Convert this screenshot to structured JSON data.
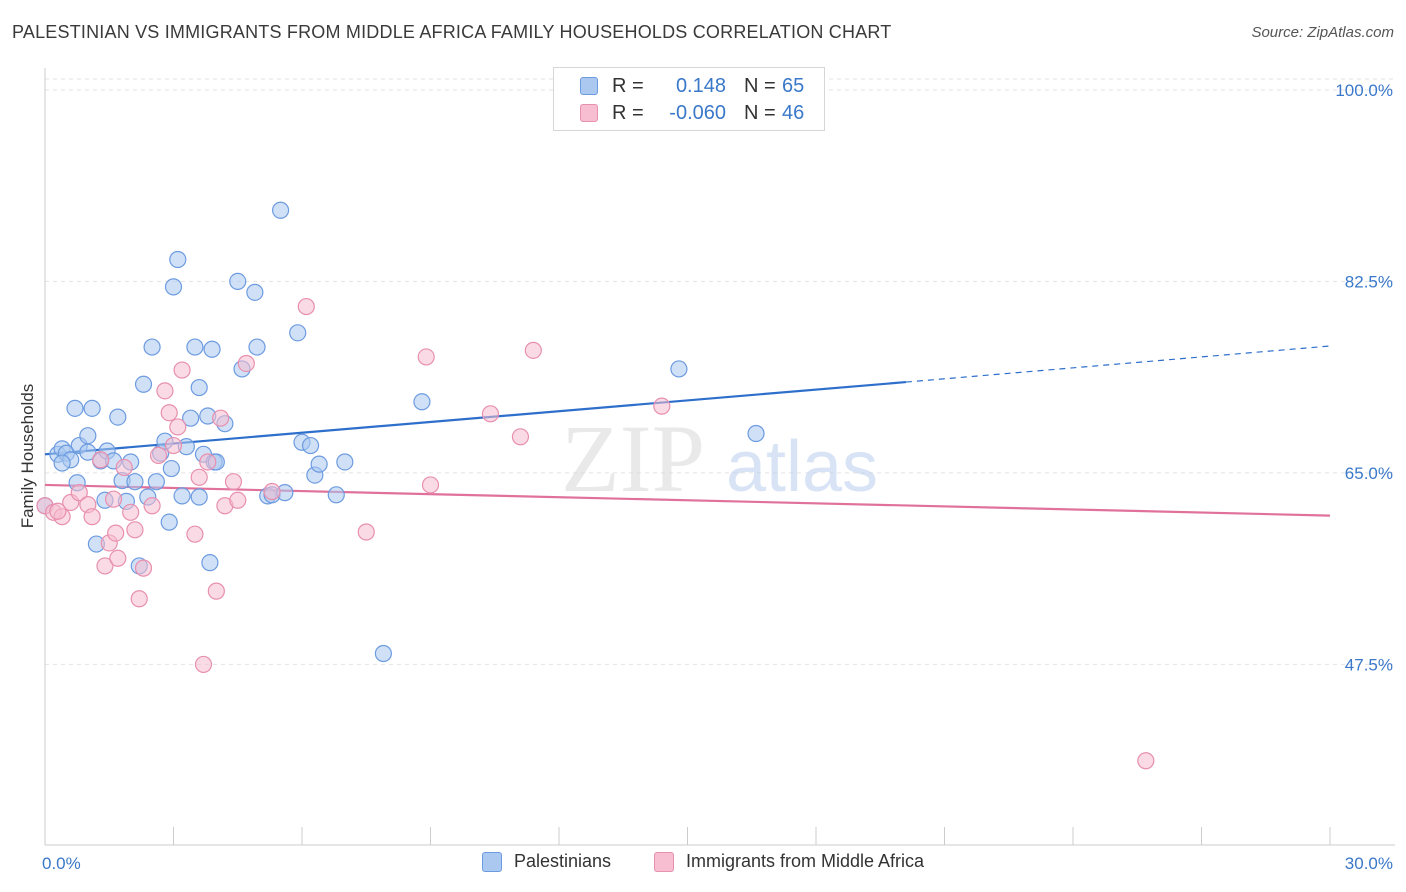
{
  "title": "PALESTINIAN VS IMMIGRANTS FROM MIDDLE AFRICA FAMILY HOUSEHOLDS CORRELATION CHART",
  "source": "Source: ZipAtlas.com",
  "watermark": {
    "zip": "ZIP",
    "atlas": "atlas"
  },
  "legend_top": {
    "rows": [
      {
        "r_label": "R =",
        "r_value": "0.148",
        "n_label": "N =",
        "n_value": "65"
      },
      {
        "r_label": "R =",
        "r_value": "-0.060",
        "n_label": "N =",
        "n_value": "46"
      }
    ]
  },
  "legend_bottom": {
    "items": [
      {
        "label": "Palestinians"
      },
      {
        "label": "Immigrants from Middle Africa"
      }
    ]
  },
  "colors": {
    "blue_fill": "#aac8f0",
    "blue_stroke": "#6d9be0",
    "blue_line": "#2e6fcb",
    "pink_fill": "#f6bed0",
    "pink_stroke": "#e88fae",
    "pink_line": "#e0719b",
    "axis_text": "#3a78c9",
    "grid": "#e3e3e3"
  },
  "chart_data": {
    "type": "scatter",
    "title": "PALESTINIAN VS IMMIGRANTS FROM MIDDLE AFRICA FAMILY HOUSEHOLDS CORRELATION CHART",
    "xlabel": "",
    "ylabel": "Family Households",
    "xlim": [
      0,
      30
    ],
    "ylim": [
      31,
      102
    ],
    "x_tick_labels": [
      {
        "value": 0,
        "label": "0.0%"
      },
      {
        "value": 30,
        "label": "30.0%"
      }
    ],
    "x_minor_ticks": [
      0,
      3,
      6,
      9,
      12,
      15,
      18,
      21,
      24,
      27,
      30
    ],
    "y_ticks": [
      {
        "value": 100,
        "label": "100.0%"
      },
      {
        "value": 82.5,
        "label": "82.5%"
      },
      {
        "value": 65,
        "label": "65.0%"
      },
      {
        "value": 47.5,
        "label": "47.5%"
      }
    ],
    "grid": true,
    "series": [
      {
        "name": "Palestinians",
        "color_key": "blue",
        "trend": {
          "x0": 0,
          "y0": 66.7,
          "x1": 20.1,
          "y1": 73.3,
          "dash_to_x": 30,
          "dash_to_y": 76.6
        },
        "points": [
          [
            0.0,
            62.0
          ],
          [
            0.3,
            66.7
          ],
          [
            0.4,
            67.2
          ],
          [
            0.5,
            66.8
          ],
          [
            0.6,
            66.2
          ],
          [
            0.7,
            70.9
          ],
          [
            0.75,
            64.1
          ],
          [
            0.8,
            67.5
          ],
          [
            1.0,
            68.4
          ],
          [
            1.1,
            70.9
          ],
          [
            1.2,
            58.5
          ],
          [
            1.3,
            66.1
          ],
          [
            1.4,
            62.5
          ],
          [
            1.45,
            67.0
          ],
          [
            1.6,
            66.1
          ],
          [
            1.7,
            70.1
          ],
          [
            1.8,
            64.3
          ],
          [
            1.9,
            62.4
          ],
          [
            2.0,
            66.0
          ],
          [
            2.1,
            64.2
          ],
          [
            2.2,
            56.5
          ],
          [
            2.3,
            73.1
          ],
          [
            2.4,
            62.8
          ],
          [
            2.5,
            76.5
          ],
          [
            2.6,
            64.2
          ],
          [
            2.7,
            66.8
          ],
          [
            2.8,
            67.9
          ],
          [
            2.9,
            60.5
          ],
          [
            2.95,
            65.4
          ],
          [
            3.0,
            82.0
          ],
          [
            3.1,
            84.5
          ],
          [
            3.2,
            62.9
          ],
          [
            3.3,
            67.4
          ],
          [
            3.4,
            70.0
          ],
          [
            3.5,
            76.5
          ],
          [
            3.6,
            72.8
          ],
          [
            3.6,
            62.8
          ],
          [
            3.7,
            66.7
          ],
          [
            3.8,
            70.2
          ],
          [
            3.85,
            56.8
          ],
          [
            3.9,
            76.3
          ],
          [
            3.95,
            66.0
          ],
          [
            4.0,
            66.0
          ],
          [
            4.2,
            69.5
          ],
          [
            4.5,
            82.5
          ],
          [
            4.6,
            74.5
          ],
          [
            4.9,
            81.5
          ],
          [
            4.95,
            76.5
          ],
          [
            5.2,
            62.9
          ],
          [
            5.3,
            63.0
          ],
          [
            5.5,
            89.0
          ],
          [
            5.6,
            63.2
          ],
          [
            5.9,
            77.8
          ],
          [
            6.0,
            67.8
          ],
          [
            6.2,
            67.5
          ],
          [
            6.3,
            64.8
          ],
          [
            6.4,
            65.8
          ],
          [
            6.8,
            63.0
          ],
          [
            7.0,
            66.0
          ],
          [
            7.9,
            48.5
          ],
          [
            8.8,
            71.5
          ],
          [
            14.8,
            74.5
          ],
          [
            16.6,
            68.6
          ],
          [
            0.4,
            65.9
          ],
          [
            1.0,
            66.9
          ]
        ]
      },
      {
        "name": "Immigrants from Middle Africa",
        "color_key": "pink",
        "trend": {
          "x0": 0,
          "y0": 63.9,
          "x1": 30,
          "y1": 61.1
        },
        "points": [
          [
            0.0,
            62.0
          ],
          [
            0.2,
            61.4
          ],
          [
            0.4,
            61.0
          ],
          [
            0.6,
            62.3
          ],
          [
            0.8,
            63.2
          ],
          [
            1.0,
            62.1
          ],
          [
            1.1,
            61.0
          ],
          [
            1.3,
            66.2
          ],
          [
            1.4,
            56.5
          ],
          [
            1.5,
            58.6
          ],
          [
            1.6,
            62.6
          ],
          [
            1.65,
            59.5
          ],
          [
            1.7,
            57.2
          ],
          [
            1.85,
            65.5
          ],
          [
            2.0,
            61.4
          ],
          [
            2.1,
            59.8
          ],
          [
            2.2,
            53.5
          ],
          [
            2.3,
            56.3
          ],
          [
            2.5,
            62.0
          ],
          [
            2.65,
            66.6
          ],
          [
            2.8,
            72.5
          ],
          [
            2.9,
            70.5
          ],
          [
            3.0,
            67.5
          ],
          [
            3.1,
            69.2
          ],
          [
            3.2,
            74.4
          ],
          [
            3.5,
            59.4
          ],
          [
            3.6,
            64.6
          ],
          [
            3.7,
            47.5
          ],
          [
            3.8,
            66.0
          ],
          [
            4.0,
            54.2
          ],
          [
            4.1,
            70.0
          ],
          [
            4.2,
            62.0
          ],
          [
            4.4,
            64.2
          ],
          [
            4.5,
            62.5
          ],
          [
            4.7,
            75.0
          ],
          [
            5.3,
            63.3
          ],
          [
            6.1,
            80.2
          ],
          [
            7.5,
            59.6
          ],
          [
            8.9,
            75.6
          ],
          [
            9.0,
            63.9
          ],
          [
            10.4,
            70.4
          ],
          [
            11.1,
            68.3
          ],
          [
            11.4,
            76.2
          ],
          [
            14.4,
            71.1
          ],
          [
            25.7,
            38.7
          ],
          [
            0.3,
            61.5
          ]
        ]
      }
    ]
  }
}
